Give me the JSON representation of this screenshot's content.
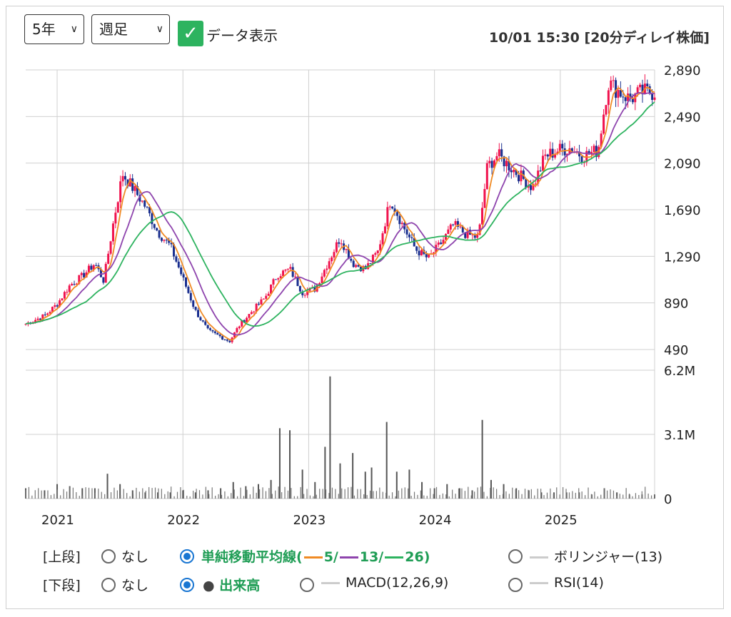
{
  "controls": {
    "period": "5年",
    "interval": "週足",
    "data_toggle_label": "データ表示",
    "timestamp": "10/01 15:30 [20分ディレイ株価]"
  },
  "chart_data": [
    {
      "type": "candlestick",
      "title": "",
      "x_labels": [
        "2021",
        "2022",
        "2023",
        "2024",
        "2025"
      ],
      "y_ticks": [
        490,
        890,
        1290,
        1690,
        2090,
        2490,
        2890
      ],
      "ylim": [
        490,
        2890
      ],
      "grid": true,
      "series": [
        {
          "name": "5",
          "color": "#f08a24"
        },
        {
          "name": "13",
          "color": "#8e44ad"
        },
        {
          "name": "26",
          "color": "#2db35f"
        }
      ],
      "colors": {
        "up": "#f0124d",
        "down": "#1a2f8f"
      },
      "values": [
        [
          2020.75,
          710
        ],
        [
          2020.9,
          780
        ],
        [
          2021.0,
          880
        ],
        [
          2021.1,
          1040
        ],
        [
          2021.2,
          1120
        ],
        [
          2021.3,
          1230
        ],
        [
          2021.37,
          1080
        ],
        [
          2021.45,
          1600
        ],
        [
          2021.52,
          2000
        ],
        [
          2021.6,
          1880
        ],
        [
          2021.7,
          1720
        ],
        [
          2021.8,
          1500
        ],
        [
          2021.9,
          1380
        ],
        [
          2022.0,
          1100
        ],
        [
          2022.1,
          820
        ],
        [
          2022.2,
          650
        ],
        [
          2022.3,
          600
        ],
        [
          2022.37,
          560
        ],
        [
          2022.45,
          700
        ],
        [
          2022.55,
          820
        ],
        [
          2022.65,
          930
        ],
        [
          2022.75,
          1130
        ],
        [
          2022.85,
          1180
        ],
        [
          2022.95,
          980
        ],
        [
          2023.05,
          1010
        ],
        [
          2023.15,
          1230
        ],
        [
          2023.25,
          1450
        ],
        [
          2023.35,
          1230
        ],
        [
          2023.45,
          1180
        ],
        [
          2023.55,
          1330
        ],
        [
          2023.65,
          1780
        ],
        [
          2023.75,
          1550
        ],
        [
          2023.85,
          1350
        ],
        [
          2023.95,
          1270
        ],
        [
          2024.05,
          1400
        ],
        [
          2024.15,
          1560
        ],
        [
          2024.25,
          1480
        ],
        [
          2024.35,
          1450
        ],
        [
          2024.42,
          2060
        ],
        [
          2024.5,
          2160
        ],
        [
          2024.58,
          2080
        ],
        [
          2024.68,
          1980
        ],
        [
          2024.78,
          1880
        ],
        [
          2024.88,
          2150
        ],
        [
          2024.98,
          2200
        ],
        [
          2025.08,
          2220
        ],
        [
          2025.18,
          2150
        ],
        [
          2025.3,
          2200
        ],
        [
          2025.38,
          2780
        ],
        [
          2025.45,
          2720
        ],
        [
          2025.55,
          2640
        ],
        [
          2025.65,
          2700
        ],
        [
          2025.75,
          2700
        ]
      ]
    },
    {
      "type": "bar",
      "title": "",
      "y_ticks_labels": [
        "0",
        "3.1M",
        "6.2M"
      ],
      "ylim": [
        0,
        6.2
      ],
      "values": [
        [
          2020.75,
          0.5
        ],
        [
          2020.9,
          0.4
        ],
        [
          2021.0,
          0.7
        ],
        [
          2021.1,
          0.6
        ],
        [
          2021.2,
          0.5
        ],
        [
          2021.3,
          0.5
        ],
        [
          2021.4,
          1.2
        ],
        [
          2021.5,
          0.7
        ],
        [
          2021.6,
          0.4
        ],
        [
          2021.7,
          0.3
        ],
        [
          2021.8,
          0.3
        ],
        [
          2021.9,
          0.3
        ],
        [
          2022.0,
          0.4
        ],
        [
          2022.1,
          0.3
        ],
        [
          2022.2,
          0.4
        ],
        [
          2022.3,
          0.5
        ],
        [
          2022.4,
          0.8
        ],
        [
          2022.5,
          0.6
        ],
        [
          2022.6,
          0.7
        ],
        [
          2022.7,
          0.9
        ],
        [
          2022.77,
          3.4
        ],
        [
          2022.85,
          3.3
        ],
        [
          2022.95,
          1.4
        ],
        [
          2023.05,
          0.8
        ],
        [
          2023.13,
          2.5
        ],
        [
          2023.17,
          5.9
        ],
        [
          2023.25,
          1.7
        ],
        [
          2023.35,
          2.2
        ],
        [
          2023.45,
          1.3
        ],
        [
          2023.5,
          1.5
        ],
        [
          2023.62,
          3.7
        ],
        [
          2023.7,
          1.3
        ],
        [
          2023.8,
          1.4
        ],
        [
          2023.9,
          0.8
        ],
        [
          2024.0,
          0.5
        ],
        [
          2024.1,
          0.7
        ],
        [
          2024.2,
          0.5
        ],
        [
          2024.3,
          0.4
        ],
        [
          2024.38,
          3.8
        ],
        [
          2024.45,
          0.9
        ],
        [
          2024.55,
          0.7
        ],
        [
          2024.65,
          0.5
        ],
        [
          2024.75,
          0.4
        ],
        [
          2024.85,
          0.3
        ],
        [
          2024.95,
          0.3
        ],
        [
          2025.05,
          0.3
        ],
        [
          2025.15,
          0.3
        ],
        [
          2025.25,
          0.2
        ],
        [
          2025.35,
          0.5
        ],
        [
          2025.45,
          0.3
        ],
        [
          2025.55,
          0.2
        ],
        [
          2025.65,
          0.2
        ],
        [
          2025.75,
          0.2
        ]
      ]
    }
  ],
  "legend": {
    "upper_label": "[上段]",
    "lower_label": "[下段]",
    "none": "なし",
    "sma_prefix": "単純移動平均線(",
    "sma_5": "5/",
    "sma_13": "13/",
    "sma_26": "26)",
    "bollinger": "ボリンジャー(13)",
    "volume": "出来高",
    "macd": "MACD(12,26,9)",
    "rsi": "RSI(14)"
  }
}
